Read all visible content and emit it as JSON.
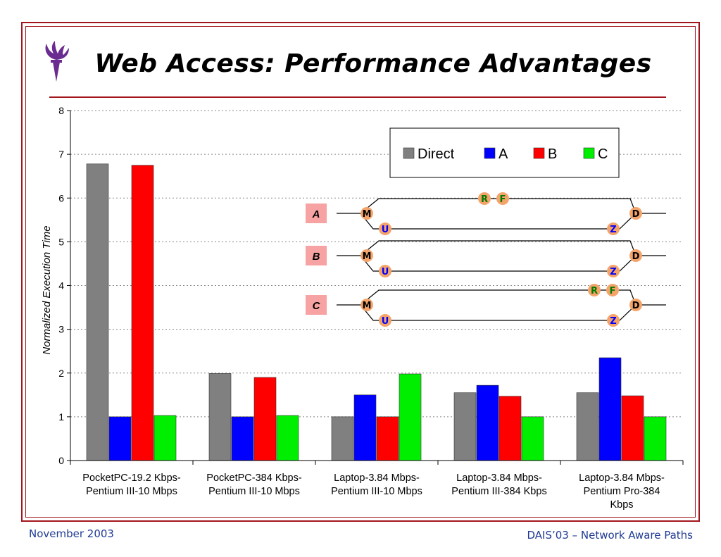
{
  "slide": {
    "title": "Web Access: Performance Advantages",
    "footer_left": "November 2003",
    "footer_right": "DAIS’03 – Network Aware Paths"
  },
  "colors": {
    "frame": "#a3151c",
    "footer": "#1f3a93"
  },
  "logo_icon": "torch-icon",
  "chart_data": {
    "type": "bar",
    "ylabel": "Normalized Execution Time",
    "ylim": [
      0,
      8
    ],
    "yticks": [
      "0",
      "1",
      "2",
      "3",
      "4",
      "5",
      "6",
      "7",
      "8"
    ],
    "grid": "horizontal-dotted",
    "legend_position": "top-right",
    "categories": [
      [
        "PocketPC-19.2 Kbps-",
        "Pentium III-10 Mbps"
      ],
      [
        "PocketPC-384 Kbps-",
        "Pentium III-10 Mbps"
      ],
      [
        "Laptop-3.84 Mbps-",
        "Pentium III-10 Mbps"
      ],
      [
        "Laptop-3.84 Mbps-",
        "Pentium III-384 Kbps"
      ],
      [
        "Laptop-3.84 Mbps-",
        "Pentium Pro-384",
        "Kbps"
      ]
    ],
    "series": [
      {
        "name": "Direct",
        "color": "#808080",
        "values": [
          6.78,
          1.99,
          1.0,
          1.55,
          1.55
        ]
      },
      {
        "name": "A",
        "color": "#0000ff",
        "values": [
          1.0,
          1.0,
          1.5,
          1.72,
          2.35
        ]
      },
      {
        "name": "B",
        "color": "#ff0000",
        "values": [
          6.75,
          1.9,
          1.0,
          1.47,
          1.48
        ]
      },
      {
        "name": "C",
        "color": "#00ee00",
        "values": [
          1.03,
          1.03,
          1.98,
          1.0,
          1.0
        ]
      }
    ]
  },
  "inset": {
    "rows": [
      {
        "label": "A",
        "top_nodes": [
          "R",
          "F"
        ],
        "top_node_pos": "middle",
        "nodes": [
          "M",
          "U",
          "Z",
          "D"
        ]
      },
      {
        "label": "B",
        "top_nodes": [],
        "top_node_pos": "none",
        "nodes": [
          "M",
          "U",
          "Z",
          "D"
        ]
      },
      {
        "label": "C",
        "top_nodes": [
          "R",
          "F"
        ],
        "top_node_pos": "right",
        "nodes": [
          "M",
          "U",
          "Z",
          "D"
        ]
      }
    ],
    "node_colors": {
      "fill": "#f4a46a",
      "M": "#000000",
      "D": "#000000",
      "U": "#0000ff",
      "Z": "#0000ff",
      "R": "#007a00",
      "F": "#007a00"
    }
  }
}
